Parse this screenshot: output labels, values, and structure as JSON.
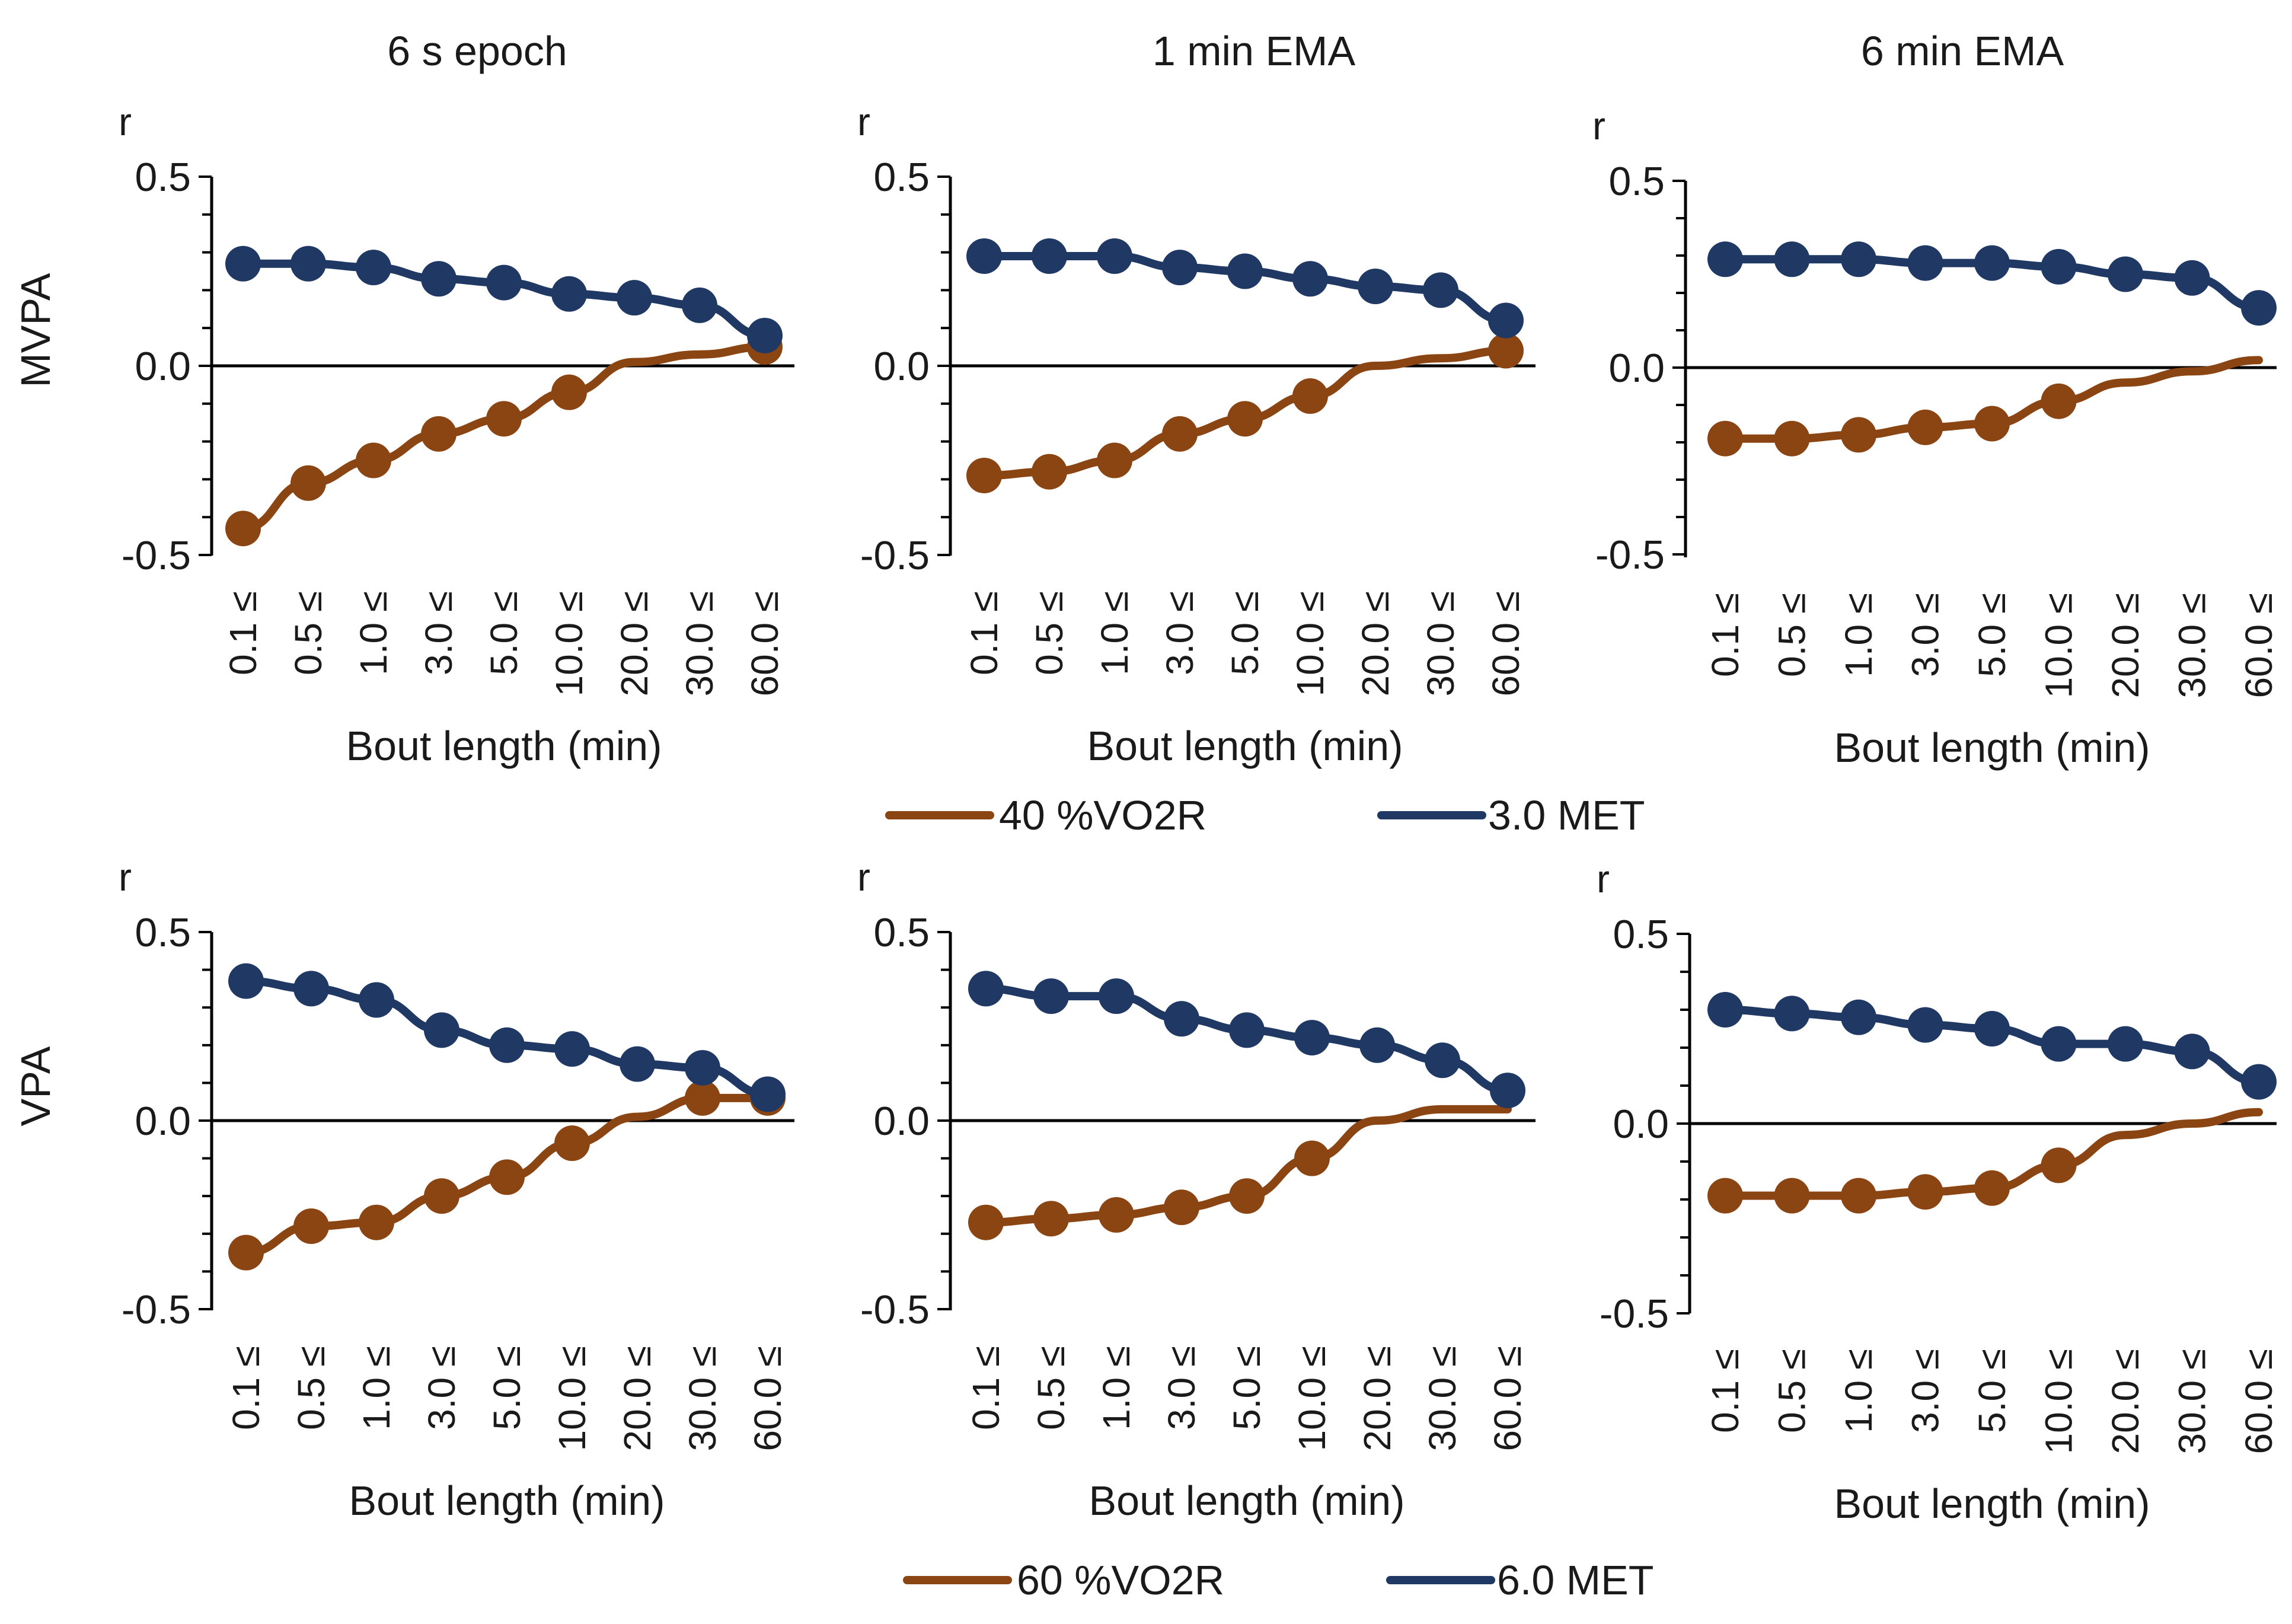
{
  "figure": {
    "x_categories": [
      "0.1 ≤",
      "0.5 ≤",
      "1.0 ≤",
      "3.0 ≤",
      "5.0 ≤",
      "10.0 ≤",
      "20.0 ≤",
      "30.0 ≤",
      "60.0 ≤"
    ],
    "y_ticks": [
      "0.5",
      "0.0",
      "-0.5"
    ],
    "y_unit": "r",
    "xlabel": "Bout length (min)",
    "colors": {
      "brown": "#8B4513",
      "navy": "#1F3864",
      "axis": "#000000"
    }
  },
  "legends": [
    {
      "items": [
        {
          "label": "40 %VO2R",
          "color": "#8B4513"
        },
        {
          "label": "3.0 MET",
          "color": "#1F3864"
        }
      ]
    },
    {
      "items": [
        {
          "label": "60 %VO2R",
          "color": "#8B4513"
        },
        {
          "label": "6.0 MET",
          "color": "#1F3864"
        }
      ]
    }
  ],
  "chart_data": [
    {
      "type": "line",
      "title": "6 s epoch",
      "ylabel": "MVPA",
      "xlabel": "Bout length (min)",
      "ylim": [
        -0.5,
        0.5
      ],
      "categories": [
        "0.1 ≤",
        "0.5 ≤",
        "1.0 ≤",
        "3.0 ≤",
        "5.0 ≤",
        "10.0 ≤",
        "20.0 ≤",
        "30.0 ≤",
        "60.0 ≤"
      ],
      "series": [
        {
          "name": "40 %VO2R",
          "color": "#8B4513",
          "values": [
            -0.43,
            -0.31,
            -0.25,
            -0.18,
            -0.14,
            -0.07,
            0.01,
            0.03,
            0.05
          ],
          "markers": [
            true,
            true,
            true,
            true,
            true,
            true,
            false,
            false,
            true
          ]
        },
        {
          "name": "3.0 MET",
          "color": "#1F3864",
          "values": [
            0.27,
            0.27,
            0.26,
            0.23,
            0.22,
            0.19,
            0.18,
            0.16,
            0.08
          ],
          "markers": [
            true,
            true,
            true,
            true,
            true,
            true,
            true,
            true,
            true
          ]
        }
      ]
    },
    {
      "type": "line",
      "title": "1 min EMA",
      "ylabel": "",
      "xlabel": "Bout length (min)",
      "ylim": [
        -0.5,
        0.5
      ],
      "categories": [
        "0.1 ≤",
        "0.5 ≤",
        "1.0 ≤",
        "3.0 ≤",
        "5.0 ≤",
        "10.0 ≤",
        "20.0 ≤",
        "30.0 ≤",
        "60.0 ≤"
      ],
      "series": [
        {
          "name": "40 %VO2R",
          "color": "#8B4513",
          "values": [
            -0.29,
            -0.28,
            -0.25,
            -0.18,
            -0.14,
            -0.08,
            0.0,
            0.02,
            0.04
          ],
          "markers": [
            true,
            true,
            true,
            true,
            true,
            true,
            false,
            false,
            true
          ]
        },
        {
          "name": "3.0 MET",
          "color": "#1F3864",
          "values": [
            0.29,
            0.29,
            0.29,
            0.26,
            0.25,
            0.23,
            0.21,
            0.2,
            0.12
          ],
          "markers": [
            true,
            true,
            true,
            true,
            true,
            true,
            true,
            true,
            true
          ]
        }
      ]
    },
    {
      "type": "line",
      "title": "6 min EMA",
      "ylabel": "",
      "xlabel": "Bout length (min)",
      "ylim": [
        -0.5,
        0.5
      ],
      "categories": [
        "0.1 ≤",
        "0.5 ≤",
        "1.0 ≤",
        "3.0 ≤",
        "5.0 ≤",
        "10.0 ≤",
        "20.0 ≤",
        "30.0 ≤",
        "60.0 ≤"
      ],
      "series": [
        {
          "name": "40 %VO2R",
          "color": "#8B4513",
          "values": [
            -0.19,
            -0.19,
            -0.18,
            -0.16,
            -0.15,
            -0.09,
            -0.04,
            -0.01,
            0.02
          ],
          "markers": [
            true,
            true,
            true,
            true,
            true,
            true,
            false,
            false,
            false
          ]
        },
        {
          "name": "3.0 MET",
          "color": "#1F3864",
          "values": [
            0.29,
            0.29,
            0.29,
            0.28,
            0.28,
            0.27,
            0.25,
            0.24,
            0.16
          ],
          "markers": [
            true,
            true,
            true,
            true,
            true,
            true,
            true,
            true,
            true
          ]
        }
      ]
    },
    {
      "type": "line",
      "title": "",
      "ylabel": "VPA",
      "xlabel": "Bout length (min)",
      "ylim": [
        -0.5,
        0.5
      ],
      "categories": [
        "0.1 ≤",
        "0.5 ≤",
        "1.0 ≤",
        "3.0 ≤",
        "5.0 ≤",
        "10.0 ≤",
        "20.0 ≤",
        "30.0 ≤",
        "60.0 ≤"
      ],
      "series": [
        {
          "name": "60 %VO2R",
          "color": "#8B4513",
          "values": [
            -0.35,
            -0.28,
            -0.27,
            -0.2,
            -0.15,
            -0.06,
            0.01,
            0.06,
            0.06
          ],
          "markers": [
            true,
            true,
            true,
            true,
            true,
            true,
            false,
            true,
            true
          ]
        },
        {
          "name": "6.0 MET",
          "color": "#1F3864",
          "values": [
            0.37,
            0.35,
            0.32,
            0.24,
            0.2,
            0.19,
            0.15,
            0.14,
            0.07
          ],
          "markers": [
            true,
            true,
            true,
            true,
            true,
            true,
            true,
            true,
            true
          ]
        }
      ]
    },
    {
      "type": "line",
      "title": "",
      "ylabel": "",
      "xlabel": "Bout length (min)",
      "ylim": [
        -0.5,
        0.5
      ],
      "categories": [
        "0.1 ≤",
        "0.5 ≤",
        "1.0 ≤",
        "3.0 ≤",
        "5.0 ≤",
        "10.0 ≤",
        "20.0 ≤",
        "30.0 ≤",
        "60.0 ≤"
      ],
      "series": [
        {
          "name": "60 %VO2R",
          "color": "#8B4513",
          "values": [
            -0.27,
            -0.26,
            -0.25,
            -0.23,
            -0.2,
            -0.1,
            0.0,
            0.03,
            0.03
          ],
          "markers": [
            true,
            true,
            true,
            true,
            true,
            true,
            false,
            false,
            false
          ]
        },
        {
          "name": "6.0 MET",
          "color": "#1F3864",
          "values": [
            0.35,
            0.33,
            0.33,
            0.27,
            0.24,
            0.22,
            0.2,
            0.16,
            0.08
          ],
          "markers": [
            true,
            true,
            true,
            true,
            true,
            true,
            true,
            true,
            true
          ]
        }
      ]
    },
    {
      "type": "line",
      "title": "",
      "ylabel": "",
      "xlabel": "Bout length (min)",
      "ylim": [
        -0.5,
        0.5
      ],
      "categories": [
        "0.1 ≤",
        "0.5 ≤",
        "1.0 ≤",
        "3.0 ≤",
        "5.0 ≤",
        "10.0 ≤",
        "20.0 ≤",
        "30.0 ≤",
        "60.0 ≤"
      ],
      "series": [
        {
          "name": "60 %VO2R",
          "color": "#8B4513",
          "values": [
            -0.19,
            -0.19,
            -0.19,
            -0.18,
            -0.17,
            -0.11,
            -0.03,
            0.0,
            0.03
          ],
          "markers": [
            true,
            true,
            true,
            true,
            true,
            true,
            false,
            false,
            false
          ]
        },
        {
          "name": "6.0 MET",
          "color": "#1F3864",
          "values": [
            0.3,
            0.29,
            0.28,
            0.26,
            0.25,
            0.21,
            0.21,
            0.19,
            0.11
          ],
          "markers": [
            true,
            true,
            true,
            true,
            true,
            true,
            true,
            true,
            true
          ]
        }
      ]
    }
  ]
}
